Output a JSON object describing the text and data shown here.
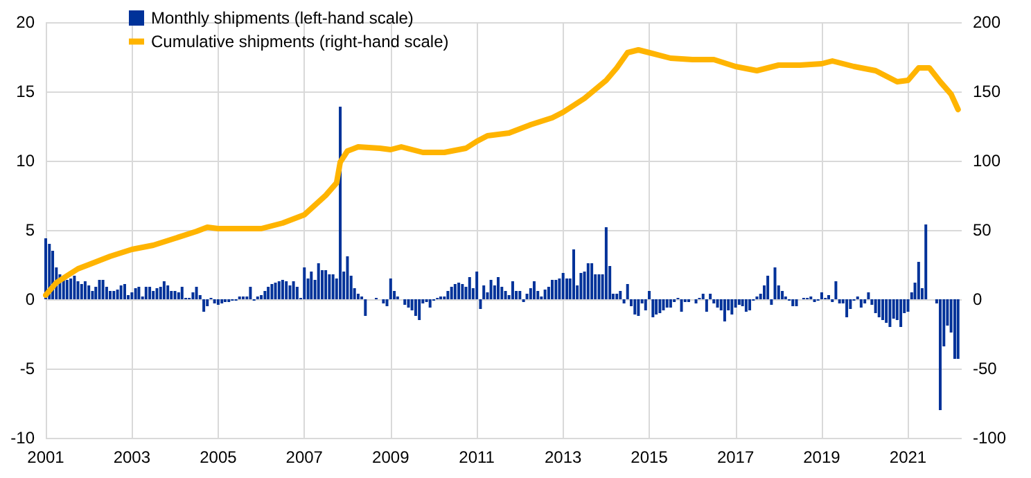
{
  "chart_data": {
    "type": "bar",
    "legend": "top left",
    "grid": true,
    "xlim": [
      "2001-01",
      "2022-04"
    ],
    "xticks": [
      "2001",
      "2003",
      "2005",
      "2007",
      "2009",
      "2011",
      "2013",
      "2015",
      "2017",
      "2019",
      "2021"
    ],
    "ylim": [
      -10,
      20
    ],
    "yticks": [
      -10,
      -5,
      0,
      5,
      10,
      15,
      20
    ],
    "y2lim": [
      -100,
      200
    ],
    "y2ticks": [
      -100,
      -50,
      0,
      50,
      100,
      150,
      200
    ],
    "x": [
      "2001-01",
      "2001-02",
      "2001-03",
      "2001-04",
      "2001-05",
      "2001-06",
      "2001-07",
      "2001-08",
      "2001-09",
      "2001-10",
      "2001-11",
      "2001-12",
      "2002-01",
      "2002-02",
      "2002-03",
      "2002-04",
      "2002-05",
      "2002-06",
      "2002-07",
      "2002-08",
      "2002-09",
      "2002-10",
      "2002-11",
      "2002-12",
      "2003-01",
      "2003-02",
      "2003-03",
      "2003-04",
      "2003-05",
      "2003-06",
      "2003-07",
      "2003-08",
      "2003-09",
      "2003-10",
      "2003-11",
      "2003-12",
      "2004-01",
      "2004-02",
      "2004-03",
      "2004-04",
      "2004-05",
      "2004-06",
      "2004-07",
      "2004-08",
      "2004-09",
      "2004-10",
      "2004-11",
      "2004-12",
      "2005-01",
      "2005-02",
      "2005-03",
      "2005-04",
      "2005-05",
      "2005-06",
      "2005-07",
      "2005-08",
      "2005-09",
      "2005-10",
      "2005-11",
      "2005-12",
      "2006-01",
      "2006-02",
      "2006-03",
      "2006-04",
      "2006-05",
      "2006-06",
      "2006-07",
      "2006-08",
      "2006-09",
      "2006-10",
      "2006-11",
      "2006-12",
      "2007-01",
      "2007-02",
      "2007-03",
      "2007-04",
      "2007-05",
      "2007-06",
      "2007-07",
      "2007-08",
      "2007-09",
      "2007-10",
      "2007-11",
      "2007-12",
      "2008-01",
      "2008-02",
      "2008-03",
      "2008-04",
      "2008-05",
      "2008-06",
      "2008-07",
      "2008-08",
      "2008-09",
      "2008-10",
      "2008-11",
      "2008-12",
      "2009-01",
      "2009-02",
      "2009-03",
      "2009-04",
      "2009-05",
      "2009-06",
      "2009-07",
      "2009-08",
      "2009-09",
      "2009-10",
      "2009-11",
      "2009-12",
      "2010-01",
      "2010-02",
      "2010-03",
      "2010-04",
      "2010-05",
      "2010-06",
      "2010-07",
      "2010-08",
      "2010-09",
      "2010-10",
      "2010-11",
      "2010-12",
      "2011-01",
      "2011-02",
      "2011-03",
      "2011-04",
      "2011-05",
      "2011-06",
      "2011-07",
      "2011-08",
      "2011-09",
      "2011-10",
      "2011-11",
      "2011-12",
      "2012-01",
      "2012-02",
      "2012-03",
      "2012-04",
      "2012-05",
      "2012-06",
      "2012-07",
      "2012-08",
      "2012-09",
      "2012-10",
      "2012-11",
      "2012-12",
      "2013-01",
      "2013-02",
      "2013-03",
      "2013-04",
      "2013-05",
      "2013-06",
      "2013-07",
      "2013-08",
      "2013-09",
      "2013-10",
      "2013-11",
      "2013-12",
      "2014-01",
      "2014-02",
      "2014-03",
      "2014-04",
      "2014-05",
      "2014-06",
      "2014-07",
      "2014-08",
      "2014-09",
      "2014-10",
      "2014-11",
      "2014-12",
      "2015-01",
      "2015-02",
      "2015-03",
      "2015-04",
      "2015-05",
      "2015-06",
      "2015-07",
      "2015-08",
      "2015-09",
      "2015-10",
      "2015-11",
      "2015-12",
      "2016-01",
      "2016-02",
      "2016-03",
      "2016-04",
      "2016-05",
      "2016-06",
      "2016-07",
      "2016-08",
      "2016-09",
      "2016-10",
      "2016-11",
      "2016-12",
      "2017-01",
      "2017-02",
      "2017-03",
      "2017-04",
      "2017-05",
      "2017-06",
      "2017-07",
      "2017-08",
      "2017-09",
      "2017-10",
      "2017-11",
      "2017-12",
      "2018-01",
      "2018-02",
      "2018-03",
      "2018-04",
      "2018-05",
      "2018-06",
      "2018-07",
      "2018-08",
      "2018-09",
      "2018-10",
      "2018-11",
      "2018-12",
      "2019-01",
      "2019-02",
      "2019-03",
      "2019-04",
      "2019-05",
      "2019-06",
      "2019-07",
      "2019-08",
      "2019-09",
      "2019-10",
      "2019-11",
      "2019-12",
      "2020-01",
      "2020-02",
      "2020-03",
      "2020-04",
      "2020-05",
      "2020-06",
      "2020-07",
      "2020-08",
      "2020-09",
      "2020-10",
      "2020-11",
      "2020-12",
      "2021-01",
      "2021-02",
      "2021-03",
      "2021-04",
      "2021-05",
      "2021-06",
      "2021-07",
      "2021-08",
      "2021-09",
      "2021-10",
      "2021-11",
      "2021-12",
      "2022-01",
      "2022-02",
      "2022-03"
    ],
    "series": [
      {
        "name": "Monthly shipments (left-hand scale)",
        "color": "#003299",
        "values": [
          4.4,
          4.0,
          3.5,
          2.3,
          1.8,
          1.5,
          1.4,
          1.5,
          1.7,
          1.3,
          1.1,
          1.3,
          1.0,
          0.6,
          0.9,
          1.4,
          1.4,
          0.9,
          0.6,
          0.6,
          0.7,
          1.0,
          1.1,
          0.3,
          0.5,
          0.8,
          0.9,
          0.2,
          0.9,
          0.9,
          0.6,
          0.8,
          0.9,
          1.3,
          1.0,
          0.6,
          0.6,
          0.5,
          0.9,
          0.1,
          0.1,
          0.5,
          0.9,
          0.3,
          -0.9,
          -0.5,
          0.1,
          -0.3,
          -0.4,
          -0.3,
          -0.2,
          -0.2,
          -0.1,
          -0.1,
          0.2,
          0.2,
          0.2,
          0.9,
          -0.1,
          0.2,
          0.3,
          0.6,
          0.9,
          1.1,
          1.2,
          1.3,
          1.4,
          1.3,
          1.0,
          1.3,
          0.9,
          0.1,
          2.3,
          1.5,
          2.0,
          1.4,
          2.6,
          2.1,
          2.1,
          1.8,
          1.8,
          1.5,
          13.9,
          2.0,
          3.1,
          1.7,
          0.8,
          0.4,
          0.2,
          -1.2,
          0,
          0,
          0.1,
          0,
          -0.3,
          -0.5,
          1.5,
          0.6,
          0.2,
          0,
          -0.4,
          -0.6,
          -0.8,
          -1.2,
          -1.5,
          -0.3,
          -0.2,
          -0.6,
          -0.1,
          0.1,
          0.2,
          0.2,
          0.6,
          0.9,
          1.1,
          1.2,
          1.1,
          0.9,
          1.6,
          0.8,
          2.0,
          -0.7,
          1.0,
          0.5,
          1.4,
          1.0,
          1.6,
          0.9,
          0.6,
          0.3,
          1.3,
          0.6,
          0.6,
          -0.2,
          0.4,
          0.8,
          1.3,
          0.6,
          0.2,
          0.7,
          0.9,
          1.4,
          1.4,
          1.5,
          1.9,
          1.5,
          1.5,
          3.6,
          1.0,
          1.9,
          2.0,
          2.6,
          2.6,
          1.8,
          1.8,
          1.8,
          5.2,
          2.4,
          0.4,
          0.4,
          0.6,
          -0.3,
          1.1,
          -0.5,
          -1.1,
          -1.2,
          -0.3,
          -0.8,
          0.6,
          -1.3,
          -1.1,
          -1.0,
          -0.8,
          -0.6,
          -0.6,
          -0.2,
          0.1,
          -0.9,
          -0.2,
          -0.2,
          0,
          -0.3,
          0.1,
          0.4,
          -0.9,
          0.4,
          -0.3,
          -0.6,
          -0.8,
          -1.6,
          -0.8,
          -1.1,
          -0.6,
          -0.4,
          -0.5,
          -0.9,
          -0.8,
          -0.1,
          0.2,
          0.4,
          1.0,
          1.7,
          -0.4,
          2.3,
          1.0,
          0.6,
          0.2,
          -0.1,
          -0.5,
          -0.5,
          0,
          0.1,
          0.1,
          0.2,
          -0.2,
          -0.1,
          0.5,
          0.1,
          0.3,
          -0.2,
          1.3,
          -0.3,
          -0.3,
          -1.3,
          -0.7,
          -0.1,
          0.2,
          -0.6,
          -0.3,
          0.5,
          -0.4,
          -1.0,
          -1.3,
          -1.5,
          -1.7,
          -2.0,
          -1.4,
          -1.5,
          -2.0,
          -1.0,
          -0.9,
          0.5,
          1.2,
          2.7,
          0.8,
          5.4,
          0,
          0,
          -0.3,
          -8.0,
          -3.4,
          -1.9,
          -2.4,
          -4.3,
          -4.3
        ]
      },
      {
        "name": "Cumulative shipments (right-hand scale)",
        "type": "line",
        "axis": "y2",
        "color": "#ffb400",
        "marker": "none",
        "line_style": "solid",
        "x": [
          "2001-01",
          "2001-04",
          "2001-07",
          "2001-10",
          "2002-01",
          "2002-07",
          "2003-01",
          "2003-07",
          "2004-01",
          "2004-07",
          "2004-10",
          "2005-01",
          "2005-07",
          "2006-01",
          "2006-07",
          "2007-01",
          "2007-07",
          "2007-10",
          "2007-11",
          "2008-01",
          "2008-04",
          "2008-10",
          "2009-01",
          "2009-04",
          "2009-10",
          "2010-04",
          "2010-10",
          "2011-01",
          "2011-04",
          "2011-10",
          "2012-04",
          "2012-10",
          "2013-01",
          "2013-07",
          "2014-01",
          "2014-04",
          "2014-07",
          "2014-10",
          "2015-01",
          "2015-07",
          "2016-01",
          "2016-07",
          "2017-01",
          "2017-07",
          "2018-01",
          "2018-07",
          "2019-01",
          "2019-04",
          "2019-10",
          "2020-04",
          "2020-10",
          "2021-01",
          "2021-04",
          "2021-07",
          "2021-10",
          "2022-01",
          "2022-03"
        ],
        "values": [
          3,
          12,
          17,
          22,
          25,
          31,
          36,
          39,
          44,
          49,
          52,
          51,
          51,
          51,
          55,
          61,
          75,
          84,
          99,
          107,
          110,
          109,
          108,
          110,
          106,
          106,
          109,
          114,
          118,
          120,
          126,
          131,
          135,
          145,
          158,
          167,
          178,
          180,
          178,
          174,
          173,
          173,
          168,
          165,
          169,
          169,
          170,
          172,
          168,
          165,
          157,
          158,
          167,
          167,
          157,
          148,
          137
        ]
      }
    ]
  }
}
